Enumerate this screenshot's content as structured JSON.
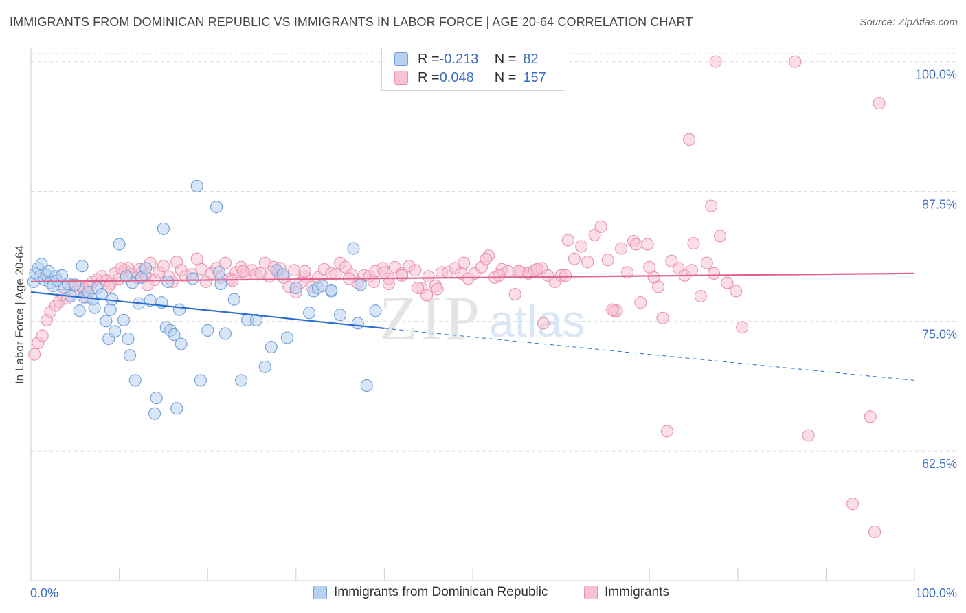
{
  "title": "IMMIGRANTS FROM DOMINICAN REPUBLIC VS IMMIGRANTS IN LABOR FORCE | AGE 20-64 CORRELATION CHART",
  "source": "Source: ZipAtlas.com",
  "watermark": {
    "zip": "ZIP",
    "atlas": "atlas"
  },
  "legend": {
    "rows": [
      {
        "r_label": "R = ",
        "r_value": "-0.213",
        "n_label": "N = ",
        "n_value": "82"
      },
      {
        "r_label": "R = ",
        "r_value": "0.048",
        "n_label": "N = ",
        "n_value": "157"
      }
    ]
  },
  "colors": {
    "blue_fill": "#b9d1f0",
    "blue_stroke": "#6f9fd8",
    "blue_line": "#2a6fd0",
    "pink_fill": "#f7c3d3",
    "pink_stroke": "#e892ad",
    "pink_line": "#e0628c",
    "tick_label": "#3a6fc4",
    "grid": "#dedede"
  },
  "chart_data": {
    "type": "scatter",
    "xlabel": "",
    "ylabel": "In Labor Force | Age 20-64",
    "x_tick_labels": [
      "0.0%",
      "100.0%"
    ],
    "y_tick_labels": [
      "62.5%",
      "75.0%",
      "87.5%",
      "100.0%"
    ],
    "y_ticks": [
      62.5,
      75.0,
      87.5,
      100.0
    ],
    "xlim": [
      0,
      100
    ],
    "ylim": [
      50,
      101.3
    ],
    "grid": true,
    "legend_position": "top-center",
    "series": [
      {
        "name": "Immigrants from Dominican Republic",
        "r": -0.213,
        "n": 82,
        "trend": {
          "x0": 0,
          "y0": 77.8,
          "x1": 40,
          "y1": 74.3,
          "dashed_to_x": 100,
          "dashed_to_y": 69.3
        },
        "points": [
          [
            0.3,
            78.8
          ],
          [
            0.5,
            79.6
          ],
          [
            0.8,
            80.1
          ],
          [
            1.0,
            79.3
          ],
          [
            1.2,
            80.5
          ],
          [
            1.5,
            79.0
          ],
          [
            1.8,
            79.4
          ],
          [
            2.0,
            79.8
          ],
          [
            2.2,
            78.7
          ],
          [
            2.5,
            78.4
          ],
          [
            2.8,
            79.3
          ],
          [
            3.0,
            78.9
          ],
          [
            3.5,
            79.4
          ],
          [
            3.8,
            78.2
          ],
          [
            4.2,
            78.6
          ],
          [
            4.5,
            77.4
          ],
          [
            5.0,
            78.5
          ],
          [
            5.5,
            76.0
          ],
          [
            5.8,
            80.3
          ],
          [
            6.0,
            77.3
          ],
          [
            6.5,
            77.8
          ],
          [
            7.0,
            77.1
          ],
          [
            7.2,
            76.3
          ],
          [
            7.5,
            78.2
          ],
          [
            8.0,
            77.6
          ],
          [
            8.5,
            75.0
          ],
          [
            8.8,
            73.3
          ],
          [
            9.0,
            76.1
          ],
          [
            9.2,
            77.1
          ],
          [
            9.5,
            74.0
          ],
          [
            10.0,
            82.4
          ],
          [
            10.5,
            75.1
          ],
          [
            11.0,
            73.3
          ],
          [
            11.2,
            71.7
          ],
          [
            11.5,
            78.7
          ],
          [
            11.8,
            69.3
          ],
          [
            12.2,
            76.7
          ],
          [
            12.5,
            79.2
          ],
          [
            13.0,
            80.1
          ],
          [
            13.5,
            77.0
          ],
          [
            14.0,
            66.1
          ],
          [
            14.2,
            67.6
          ],
          [
            14.8,
            76.8
          ],
          [
            15.0,
            83.9
          ],
          [
            15.3,
            74.4
          ],
          [
            15.8,
            74.1
          ],
          [
            16.2,
            73.7
          ],
          [
            16.5,
            66.6
          ],
          [
            16.8,
            76.1
          ],
          [
            17.0,
            72.8
          ],
          [
            18.3,
            79.1
          ],
          [
            18.8,
            88.0
          ],
          [
            19.2,
            69.3
          ],
          [
            20.0,
            74.1
          ],
          [
            21.0,
            86.0
          ],
          [
            21.3,
            79.7
          ],
          [
            21.5,
            78.6
          ],
          [
            22.0,
            73.8
          ],
          [
            23.0,
            77.1
          ],
          [
            23.8,
            69.3
          ],
          [
            24.5,
            75.1
          ],
          [
            25.5,
            75.1
          ],
          [
            26.5,
            70.6
          ],
          [
            27.2,
            72.5
          ],
          [
            27.8,
            79.9
          ],
          [
            28.5,
            79.5
          ],
          [
            29.0,
            73.4
          ],
          [
            30.0,
            78.2
          ],
          [
            31.5,
            75.8
          ],
          [
            32.0,
            77.9
          ],
          [
            32.5,
            78.2
          ],
          [
            34.0,
            77.9
          ],
          [
            35.0,
            75.6
          ],
          [
            37.0,
            74.8
          ],
          [
            37.3,
            78.5
          ],
          [
            38.0,
            68.8
          ],
          [
            39.0,
            76.0
          ],
          [
            36.5,
            82.0
          ],
          [
            33.0,
            78.4
          ],
          [
            34.0,
            78.0
          ],
          [
            10.8,
            79.3
          ],
          [
            15.5,
            78.8
          ]
        ]
      },
      {
        "name": "Immigrants",
        "r": 0.048,
        "n": 157,
        "trend": {
          "x0": 0,
          "y0": 78.8,
          "x1": 100,
          "y1": 79.6
        },
        "points": [
          [
            0.4,
            71.8
          ],
          [
            0.8,
            72.9
          ],
          [
            1.3,
            73.6
          ],
          [
            1.8,
            75.1
          ],
          [
            2.2,
            75.9
          ],
          [
            2.8,
            76.5
          ],
          [
            3.2,
            76.9
          ],
          [
            3.6,
            77.5
          ],
          [
            4.1,
            77.2
          ],
          [
            4.6,
            78.5
          ],
          [
            5.0,
            77.8
          ],
          [
            5.5,
            78.4
          ],
          [
            6.0,
            78.1
          ],
          [
            6.6,
            78.4
          ],
          [
            7.0,
            78.8
          ],
          [
            7.5,
            79.0
          ],
          [
            8.0,
            79.3
          ],
          [
            8.5,
            78.9
          ],
          [
            9.0,
            78.6
          ],
          [
            9.5,
            79.6
          ],
          [
            10.0,
            79.1
          ],
          [
            10.6,
            79.9
          ],
          [
            11.0,
            80.1
          ],
          [
            11.5,
            79.5
          ],
          [
            12.0,
            79.2
          ],
          [
            12.6,
            79.8
          ],
          [
            13.0,
            79.4
          ],
          [
            13.5,
            80.6
          ],
          [
            14.0,
            79.0
          ],
          [
            14.5,
            79.7
          ],
          [
            15.0,
            80.3
          ],
          [
            15.6,
            79.3
          ],
          [
            16.0,
            78.8
          ],
          [
            16.5,
            80.7
          ],
          [
            17.0,
            79.9
          ],
          [
            17.5,
            79.3
          ],
          [
            18.2,
            79.5
          ],
          [
            18.8,
            81.0
          ],
          [
            19.3,
            80.0
          ],
          [
            19.8,
            78.8
          ],
          [
            20.4,
            79.6
          ],
          [
            21.0,
            80.1
          ],
          [
            21.5,
            79.2
          ],
          [
            22.0,
            80.6
          ],
          [
            22.6,
            79.1
          ],
          [
            23.2,
            79.7
          ],
          [
            23.8,
            80.2
          ],
          [
            24.3,
            79.5
          ],
          [
            25.0,
            79.9
          ],
          [
            25.5,
            79.5
          ],
          [
            26.0,
            79.6
          ],
          [
            26.5,
            80.6
          ],
          [
            27.0,
            79.3
          ],
          [
            27.5,
            80.2
          ],
          [
            28.0,
            79.7
          ],
          [
            28.6,
            79.2
          ],
          [
            29.2,
            78.3
          ],
          [
            29.8,
            79.9
          ],
          [
            30.5,
            78.7
          ],
          [
            31.0,
            79.3
          ],
          [
            31.8,
            78.3
          ],
          [
            32.5,
            79.2
          ],
          [
            33.2,
            80.0
          ],
          [
            34.0,
            79.6
          ],
          [
            34.5,
            79.5
          ],
          [
            35.0,
            80.6
          ],
          [
            35.6,
            80.2
          ],
          [
            36.3,
            79.5
          ],
          [
            37.0,
            78.7
          ],
          [
            37.7,
            79.4
          ],
          [
            38.3,
            79.3
          ],
          [
            39.0,
            79.8
          ],
          [
            39.8,
            80.1
          ],
          [
            40.5,
            79.1
          ],
          [
            41.2,
            80.2
          ],
          [
            42.0,
            79.6
          ],
          [
            42.8,
            80.3
          ],
          [
            43.5,
            79.9
          ],
          [
            44.2,
            78.2
          ],
          [
            45.0,
            79.3
          ],
          [
            45.8,
            78.4
          ],
          [
            46.5,
            79.7
          ],
          [
            47.2,
            79.7
          ],
          [
            48.0,
            80.1
          ],
          [
            48.7,
            79.6
          ],
          [
            49.5,
            79.1
          ],
          [
            50.2,
            79.6
          ],
          [
            51.0,
            80.2
          ],
          [
            51.8,
            81.3
          ],
          [
            52.5,
            79.2
          ],
          [
            53.3,
            80.0
          ],
          [
            54.0,
            79.8
          ],
          [
            54.8,
            77.6
          ],
          [
            55.5,
            79.7
          ],
          [
            56.3,
            79.6
          ],
          [
            57.0,
            79.9
          ],
          [
            57.8,
            80.1
          ],
          [
            58.5,
            79.4
          ],
          [
            59.3,
            78.8
          ],
          [
            60.0,
            79.4
          ],
          [
            60.8,
            82.8
          ],
          [
            61.5,
            81.0
          ],
          [
            62.3,
            82.2
          ],
          [
            63.0,
            80.7
          ],
          [
            63.8,
            83.3
          ],
          [
            64.5,
            84.1
          ],
          [
            65.3,
            80.9
          ],
          [
            66.0,
            76.0
          ],
          [
            66.8,
            82.0
          ],
          [
            67.5,
            79.7
          ],
          [
            68.2,
            82.7
          ],
          [
            69.0,
            76.8
          ],
          [
            69.8,
            82.4
          ],
          [
            70.5,
            79.2
          ],
          [
            71.5,
            75.3
          ],
          [
            72.5,
            80.8
          ],
          [
            73.3,
            80.1
          ],
          [
            74.0,
            79.4
          ],
          [
            75.0,
            82.5
          ],
          [
            75.8,
            77.4
          ],
          [
            76.5,
            80.6
          ],
          [
            77.3,
            79.6
          ],
          [
            78.0,
            83.2
          ],
          [
            78.8,
            78.7
          ],
          [
            79.8,
            77.9
          ],
          [
            31.0,
            79.8
          ],
          [
            10.2,
            80.1
          ],
          [
            12.3,
            80.0
          ],
          [
            43.8,
            78.2
          ],
          [
            28.2,
            80.1
          ],
          [
            36.0,
            79.1
          ],
          [
            44.8,
            77.5
          ],
          [
            46.0,
            78.1
          ],
          [
            24.0,
            79.8
          ],
          [
            13.2,
            78.5
          ],
          [
            22.8,
            78.9
          ],
          [
            30.0,
            77.8
          ],
          [
            38.8,
            78.8
          ],
          [
            40.0,
            79.7
          ],
          [
            42.0,
            79.4
          ],
          [
            6.3,
            77.3
          ],
          [
            8.8,
            78.3
          ],
          [
            51.5,
            81.0
          ],
          [
            55.2,
            79.8
          ],
          [
            57.3,
            80.0
          ],
          [
            66.3,
            76.0
          ],
          [
            71.0,
            78.3
          ],
          [
            74.5,
            92.5
          ],
          [
            77.0,
            86.1
          ],
          [
            72.0,
            64.4
          ],
          [
            77.5,
            100.0
          ],
          [
            86.5,
            100.0
          ],
          [
            88.0,
            64.0
          ],
          [
            96.0,
            96.0
          ],
          [
            80.5,
            74.4
          ],
          [
            95.0,
            65.8
          ],
          [
            93.0,
            57.4
          ],
          [
            95.5,
            54.7
          ],
          [
            40.5,
            78.6
          ],
          [
            49.0,
            80.6
          ],
          [
            53.0,
            79.4
          ],
          [
            74.8,
            79.9
          ],
          [
            58.0,
            74.8
          ],
          [
            65.8,
            76.1
          ],
          [
            70.0,
            80.2
          ],
          [
            60.5,
            79.4
          ],
          [
            68.5,
            82.4
          ]
        ]
      }
    ]
  },
  "bottom_legend": [
    {
      "label": "Immigrants from Dominican Republic"
    },
    {
      "label": "Immigrants"
    }
  ]
}
